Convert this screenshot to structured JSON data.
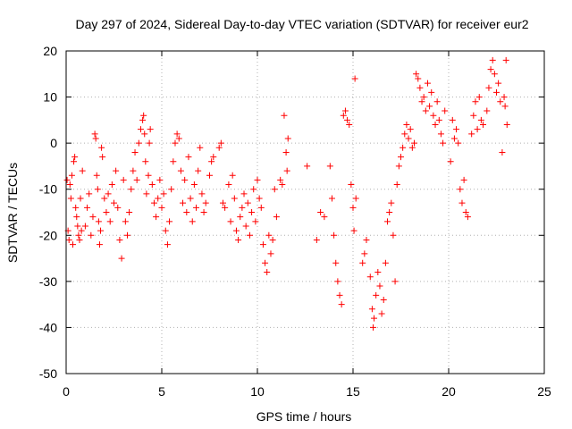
{
  "chart_data": {
    "type": "scatter",
    "title": "Day 297 of 2024, Sidereal Day-to-day VTEC variation (SDTVAR) for receiver eur2",
    "xlabel": "GPS time / hours",
    "ylabel": "SDTVAR / TECUs",
    "xlim": [
      0,
      25
    ],
    "ylim": [
      -50,
      20
    ],
    "xticks": [
      0,
      5,
      10,
      15,
      20,
      25
    ],
    "yticks": [
      -50,
      -40,
      -30,
      -20,
      -10,
      0,
      10,
      20
    ],
    "xtick_labels": [
      "0",
      "5",
      "10",
      "15",
      "20",
      "25"
    ],
    "ytick_labels": [
      "-50",
      "-40",
      "-30",
      "-20",
      "-10",
      "0",
      "10",
      "20"
    ],
    "grid": true,
    "marker": "+",
    "color": "#ff0000",
    "series": [
      {
        "name": "eur2",
        "points": [
          [
            0.05,
            -8
          ],
          [
            0.1,
            -19
          ],
          [
            0.15,
            -21
          ],
          [
            0.2,
            -9
          ],
          [
            0.25,
            -12
          ],
          [
            0.3,
            -7
          ],
          [
            0.35,
            -22
          ],
          [
            0.4,
            -4
          ],
          [
            0.45,
            -3
          ],
          [
            0.5,
            -14
          ],
          [
            0.55,
            -16
          ],
          [
            0.6,
            -18
          ],
          [
            0.65,
            -20
          ],
          [
            0.7,
            -21
          ],
          [
            0.75,
            -12
          ],
          [
            0.8,
            -19
          ],
          [
            0.85,
            -6
          ],
          [
            1.0,
            -18
          ],
          [
            1.1,
            -14
          ],
          [
            1.2,
            -11
          ],
          [
            1.3,
            -20
          ],
          [
            1.4,
            -16
          ],
          [
            1.5,
            2
          ],
          [
            1.55,
            1
          ],
          [
            1.6,
            -7
          ],
          [
            1.65,
            -10
          ],
          [
            1.7,
            -17
          ],
          [
            1.75,
            -22
          ],
          [
            1.8,
            -19
          ],
          [
            1.85,
            -1
          ],
          [
            1.9,
            -3
          ],
          [
            2.0,
            -12
          ],
          [
            2.1,
            -15
          ],
          [
            2.2,
            -11
          ],
          [
            2.3,
            -17
          ],
          [
            2.4,
            -9
          ],
          [
            2.5,
            -13
          ],
          [
            2.6,
            -6
          ],
          [
            2.7,
            -14
          ],
          [
            2.8,
            -21
          ],
          [
            2.9,
            -25
          ],
          [
            3.0,
            -8
          ],
          [
            3.1,
            -17
          ],
          [
            3.2,
            -20
          ],
          [
            3.3,
            -15
          ],
          [
            3.4,
            -10
          ],
          [
            3.5,
            -6
          ],
          [
            3.6,
            -2
          ],
          [
            3.7,
            -8
          ],
          [
            3.8,
            0
          ],
          [
            3.9,
            3
          ],
          [
            4.0,
            5
          ],
          [
            4.05,
            6
          ],
          [
            4.1,
            2
          ],
          [
            4.15,
            -4
          ],
          [
            4.2,
            -11
          ],
          [
            4.3,
            -7
          ],
          [
            4.35,
            0
          ],
          [
            4.4,
            3
          ],
          [
            4.5,
            -9
          ],
          [
            4.6,
            -13
          ],
          [
            4.7,
            -16
          ],
          [
            4.8,
            -12
          ],
          [
            4.9,
            -8
          ],
          [
            5.0,
            -14
          ],
          [
            5.1,
            -11
          ],
          [
            5.2,
            -19
          ],
          [
            5.3,
            -22
          ],
          [
            5.4,
            -17
          ],
          [
            5.5,
            -10
          ],
          [
            5.6,
            -4
          ],
          [
            5.7,
            0
          ],
          [
            5.8,
            2
          ],
          [
            5.9,
            1
          ],
          [
            6.0,
            -6
          ],
          [
            6.1,
            -13
          ],
          [
            6.2,
            -8
          ],
          [
            6.3,
            -15
          ],
          [
            6.4,
            -3
          ],
          [
            6.5,
            -12
          ],
          [
            6.6,
            -17
          ],
          [
            6.7,
            -9
          ],
          [
            6.8,
            -14
          ],
          [
            6.9,
            -6
          ],
          [
            7.0,
            -1
          ],
          [
            7.1,
            -11
          ],
          [
            7.2,
            -15
          ],
          [
            7.3,
            -13
          ],
          [
            7.5,
            -7
          ],
          [
            7.6,
            -4
          ],
          [
            7.7,
            -3
          ],
          [
            8.0,
            -1
          ],
          [
            8.1,
            0
          ],
          [
            8.2,
            -13
          ],
          [
            8.3,
            -14
          ],
          [
            8.5,
            -9
          ],
          [
            8.6,
            -17
          ],
          [
            8.7,
            -7
          ],
          [
            8.8,
            -12
          ],
          [
            8.9,
            -19
          ],
          [
            9.0,
            -21
          ],
          [
            9.1,
            -16
          ],
          [
            9.2,
            -14
          ],
          [
            9.3,
            -11
          ],
          [
            9.4,
            -18
          ],
          [
            9.5,
            -13
          ],
          [
            9.6,
            -20
          ],
          [
            9.7,
            -15
          ],
          [
            9.8,
            -10
          ],
          [
            9.9,
            -17
          ],
          [
            10.0,
            -8
          ],
          [
            10.1,
            -12
          ],
          [
            10.2,
            -14
          ],
          [
            10.3,
            -22
          ],
          [
            10.4,
            -26
          ],
          [
            10.5,
            -28
          ],
          [
            10.6,
            -20
          ],
          [
            10.7,
            -24
          ],
          [
            10.8,
            -21
          ],
          [
            10.9,
            -10
          ],
          [
            11.0,
            -16
          ],
          [
            11.2,
            -8
          ],
          [
            11.3,
            -9
          ],
          [
            11.4,
            6
          ],
          [
            11.5,
            -2
          ],
          [
            11.55,
            -6
          ],
          [
            11.6,
            1
          ],
          [
            12.6,
            -5
          ],
          [
            13.1,
            -21
          ],
          [
            13.3,
            -15
          ],
          [
            13.5,
            -16
          ],
          [
            13.8,
            -5
          ],
          [
            13.9,
            -12
          ],
          [
            14.0,
            -20
          ],
          [
            14.1,
            -26
          ],
          [
            14.2,
            -30
          ],
          [
            14.3,
            -33
          ],
          [
            14.4,
            -35
          ],
          [
            14.5,
            6
          ],
          [
            14.6,
            7
          ],
          [
            14.7,
            5
          ],
          [
            14.8,
            4
          ],
          [
            14.9,
            -9
          ],
          [
            15.0,
            -14
          ],
          [
            15.05,
            -19
          ],
          [
            15.1,
            14
          ],
          [
            15.15,
            -12
          ],
          [
            15.5,
            -26
          ],
          [
            15.6,
            -24
          ],
          [
            15.7,
            -21
          ],
          [
            15.9,
            -29
          ],
          [
            16.0,
            -36
          ],
          [
            16.05,
            -40
          ],
          [
            16.1,
            -38
          ],
          [
            16.2,
            -33
          ],
          [
            16.3,
            -28
          ],
          [
            16.4,
            -31
          ],
          [
            16.5,
            -37
          ],
          [
            16.6,
            -34
          ],
          [
            16.7,
            -26
          ],
          [
            16.8,
            -17
          ],
          [
            16.9,
            -15
          ],
          [
            17.0,
            -13
          ],
          [
            17.1,
            -20
          ],
          [
            17.2,
            -30
          ],
          [
            17.3,
            -9
          ],
          [
            17.4,
            -5
          ],
          [
            17.5,
            -3
          ],
          [
            17.6,
            -1
          ],
          [
            17.7,
            2
          ],
          [
            17.8,
            4
          ],
          [
            17.9,
            1
          ],
          [
            18.0,
            3
          ],
          [
            18.1,
            -1
          ],
          [
            18.2,
            0
          ],
          [
            18.3,
            15
          ],
          [
            18.4,
            14
          ],
          [
            18.5,
            12
          ],
          [
            18.6,
            9
          ],
          [
            18.7,
            10
          ],
          [
            18.8,
            7
          ],
          [
            18.9,
            13
          ],
          [
            19.0,
            8
          ],
          [
            19.1,
            11
          ],
          [
            19.2,
            6
          ],
          [
            19.3,
            4
          ],
          [
            19.4,
            9
          ],
          [
            19.5,
            5
          ],
          [
            19.6,
            2
          ],
          [
            19.7,
            0
          ],
          [
            19.8,
            7
          ],
          [
            20.1,
            -4
          ],
          [
            20.2,
            5
          ],
          [
            20.3,
            1
          ],
          [
            20.4,
            3
          ],
          [
            20.5,
            0
          ],
          [
            20.6,
            -10
          ],
          [
            20.7,
            -13
          ],
          [
            20.8,
            -8
          ],
          [
            20.9,
            -15
          ],
          [
            21.0,
            -16
          ],
          [
            21.2,
            2
          ],
          [
            21.3,
            6
          ],
          [
            21.4,
            9
          ],
          [
            21.5,
            3
          ],
          [
            21.6,
            10
          ],
          [
            21.7,
            5
          ],
          [
            21.8,
            4
          ],
          [
            22.0,
            7
          ],
          [
            22.1,
            12
          ],
          [
            22.2,
            16
          ],
          [
            22.3,
            18
          ],
          [
            22.4,
            15
          ],
          [
            22.5,
            11
          ],
          [
            22.6,
            13
          ],
          [
            22.7,
            9
          ],
          [
            22.8,
            -2
          ],
          [
            22.9,
            10
          ],
          [
            22.95,
            8
          ],
          [
            23.0,
            18
          ],
          [
            23.05,
            4
          ]
        ]
      }
    ]
  }
}
